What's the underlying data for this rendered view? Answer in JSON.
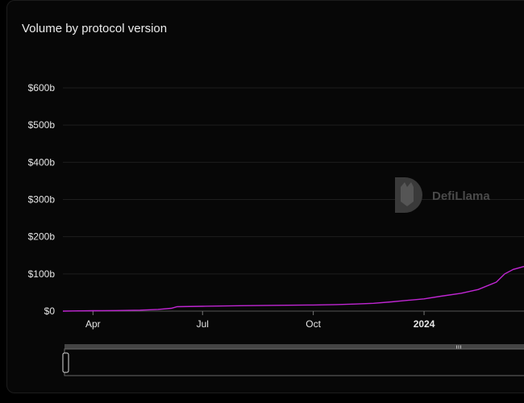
{
  "chart_data": {
    "type": "line",
    "title": "Volume by protocol version",
    "y_ticks": [
      "$0",
      "$100b",
      "$200b",
      "$300b",
      "$400b",
      "$500b",
      "$600b"
    ],
    "y_values": [
      0,
      100,
      200,
      300,
      400,
      500,
      600
    ],
    "ylim": [
      0,
      600
    ],
    "x_ticks": [
      "Apr",
      "Jul",
      "Oct",
      "2024"
    ],
    "x_tick_bold": [
      false,
      false,
      false,
      true
    ],
    "x_tick_dates": [
      "2023-04-01",
      "2023-07-01",
      "2023-10-01",
      "2024-01-01"
    ],
    "xlim": [
      "2023-03-07",
      "2024-03-24"
    ],
    "grid": true,
    "watermark": "DefiLlama",
    "series": [
      {
        "color": "#c026d3",
        "points": [
          [
            "2023-03-07",
            0
          ],
          [
            "2023-03-20",
            0.6
          ],
          [
            "2023-04-01",
            1.0
          ],
          [
            "2023-04-20",
            1.5
          ],
          [
            "2023-05-10",
            2.5
          ],
          [
            "2023-05-25",
            4.5
          ],
          [
            "2023-06-05",
            7.5
          ],
          [
            "2023-06-10",
            12
          ],
          [
            "2023-07-01",
            13
          ],
          [
            "2023-08-01",
            14.5
          ],
          [
            "2023-09-01",
            15.5
          ],
          [
            "2023-10-01",
            16.5
          ],
          [
            "2023-10-20",
            17.5
          ],
          [
            "2023-11-05",
            19
          ],
          [
            "2023-11-20",
            21
          ],
          [
            "2023-12-05",
            25
          ],
          [
            "2023-12-15",
            28
          ],
          [
            "2024-01-01",
            33
          ],
          [
            "2024-01-15",
            40
          ],
          [
            "2024-02-01",
            48
          ],
          [
            "2024-02-15",
            58
          ],
          [
            "2024-03-01",
            78
          ],
          [
            "2024-03-08",
            100
          ],
          [
            "2024-03-15",
            112
          ],
          [
            "2024-03-24",
            120
          ]
        ]
      }
    ]
  }
}
